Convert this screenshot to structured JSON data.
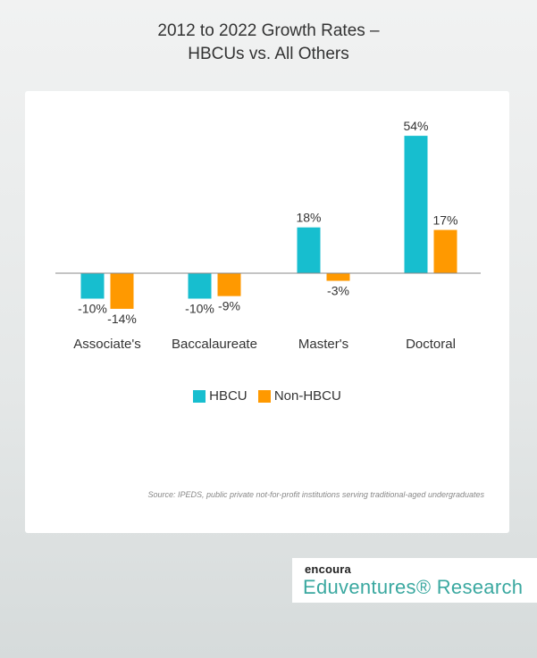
{
  "title_line1": "2012 to 2022 Growth Rates –",
  "title_line2": "HBCUs vs. All Others",
  "colors": {
    "hbcu": "#17becf",
    "non_hbcu": "#ff9900",
    "axis": "#888888"
  },
  "chart_data": {
    "type": "bar",
    "categories": [
      "Associate's",
      "Baccalaureate",
      "Master's",
      "Doctoral"
    ],
    "series": [
      {
        "name": "HBCU",
        "values": [
          -10,
          -10,
          18,
          54
        ],
        "labels": [
          "-10%",
          "-10%",
          "18%",
          "54%"
        ]
      },
      {
        "name": "Non-HBCU",
        "values": [
          -14,
          -9,
          -3,
          17
        ],
        "labels": [
          "-14%",
          "-9%",
          "-3%",
          "17%"
        ]
      }
    ],
    "legend": "bottom-center",
    "grid": false
  },
  "legend": {
    "hbcu": "HBCU",
    "non_hbcu": "Non-HBCU"
  },
  "source": "Source: IPEDS, public private not-for-profit institutions serving traditional-aged undergraduates",
  "logo": {
    "brand": "encoura",
    "research": "Eduventures® Research"
  }
}
